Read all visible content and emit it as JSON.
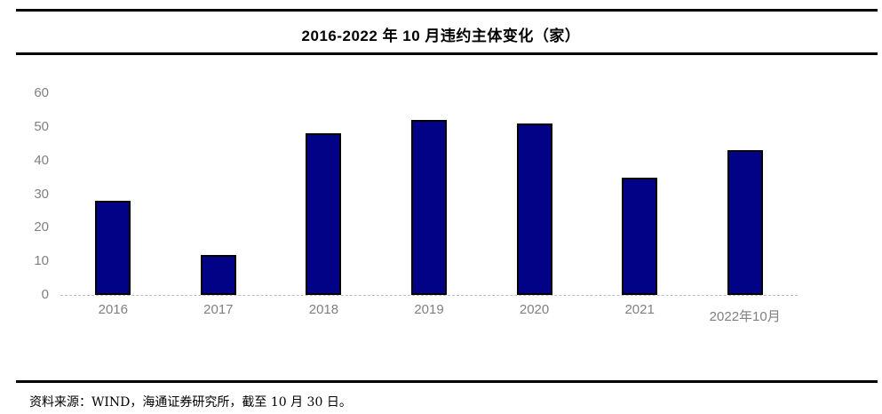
{
  "title": "2016-2022 年 10 月违约主体变化（家）",
  "source_note": "资料来源：WIND，海通证券研究所，截至 10 月 30 日。",
  "colors": {
    "bar_fill": "#020286",
    "bar_border": "#000000",
    "axis_label": "#808080",
    "baseline": "#bdbdbd",
    "rule": "#000000"
  },
  "chart_data": {
    "type": "bar",
    "categories": [
      "2016",
      "2017",
      "2018",
      "2019",
      "2020",
      "2021",
      "2022年10月"
    ],
    "values": [
      28,
      12,
      48,
      52,
      51,
      35,
      43
    ],
    "title": "2016-2022 年 10 月违约主体变化（家）",
    "xlabel": "",
    "ylabel": "",
    "ylim": [
      0,
      60
    ],
    "yticks": [
      0,
      10,
      20,
      30,
      40,
      50,
      60
    ],
    "grid": false,
    "legend": false
  }
}
